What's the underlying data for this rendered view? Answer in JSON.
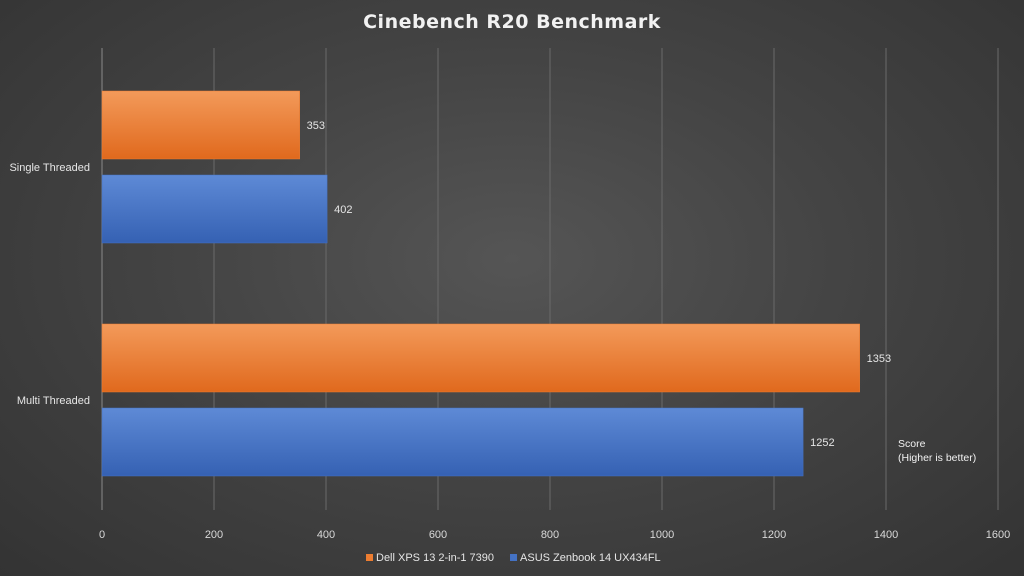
{
  "chart_data": {
    "type": "bar",
    "orientation": "horizontal",
    "title": "Cinebench R20 Benchmark",
    "categories": [
      "Single Threaded",
      "Multi Threaded"
    ],
    "series": [
      {
        "name": "Dell XPS 13 2-in-1 7390",
        "color": "#ed7d31",
        "values": [
          353,
          1353
        ]
      },
      {
        "name": "ASUS Zenbook 14 UX434FL",
        "color": "#4472c4",
        "values": [
          402,
          1252
        ]
      }
    ],
    "xlim": [
      0,
      1600
    ],
    "xticks": [
      0,
      200,
      400,
      600,
      800,
      1000,
      1200,
      1400,
      1600
    ],
    "grid": true,
    "legend_position": "bottom",
    "annotation_lines": [
      "Score",
      "(Higher is better)"
    ]
  }
}
